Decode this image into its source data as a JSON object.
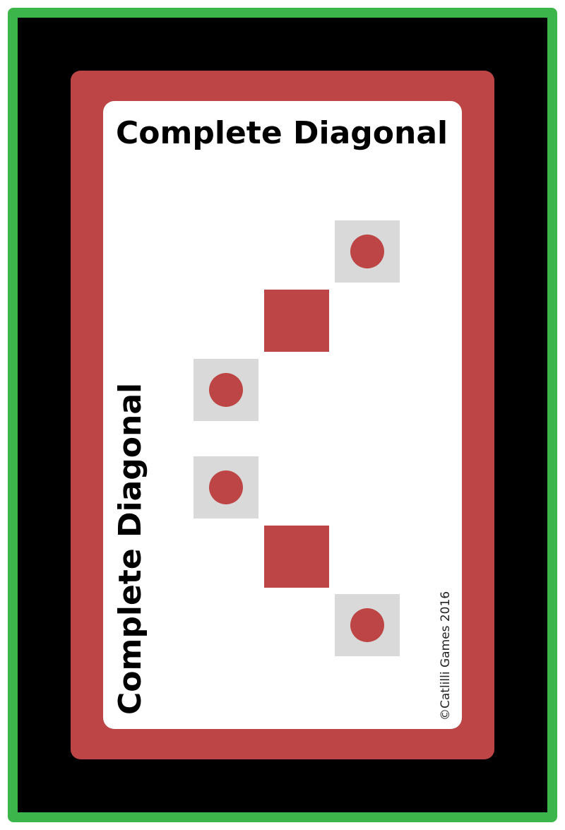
{
  "card": {
    "title": "Complete Diagonal",
    "side_title": "Complete Diagonal",
    "copyright": "©Catlilli Games 2016"
  },
  "colors": {
    "frame": "#3cb54a",
    "background": "#000000",
    "card_border": "#bd4545",
    "card_face": "#ffffff",
    "empty_tile": "#d9d9d9",
    "token": "#bd4545"
  },
  "pattern": [
    {
      "label": "tile-1",
      "state": "empty-with-token"
    },
    {
      "label": "tile-2",
      "state": "filled"
    },
    {
      "label": "tile-3",
      "state": "empty-with-token"
    },
    {
      "label": "tile-4",
      "state": "empty-with-token"
    },
    {
      "label": "tile-5",
      "state": "filled"
    },
    {
      "label": "tile-6",
      "state": "empty-with-token"
    }
  ]
}
